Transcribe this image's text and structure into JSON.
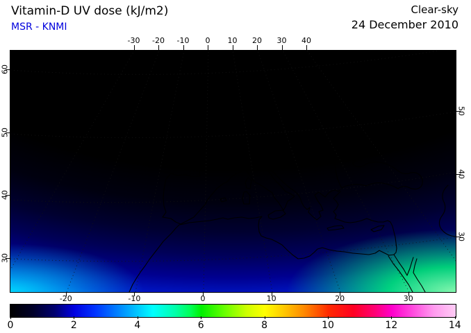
{
  "header": {
    "title": "Vitamin-D UV dose (kJ/m2)",
    "source": "MSR - KNMI",
    "condition": "Clear-sky",
    "date": "24 December 2010"
  },
  "map_axes": {
    "top_lon_ticks": [
      -30,
      -20,
      -10,
      0,
      10,
      20,
      30,
      40
    ],
    "bottom_lon_ticks": [
      -20,
      -10,
      0,
      10,
      20,
      30
    ],
    "left_lat_ticks": [
      60,
      50,
      40,
      30
    ],
    "right_lat_ticks": [
      50,
      40,
      30
    ]
  },
  "colorbar": {
    "ticks": [
      0,
      2,
      4,
      6,
      8,
      10,
      12,
      14
    ],
    "min": 0,
    "max": 14,
    "units": "kJ/m2"
  },
  "colors": {
    "source_text": "#0000dd",
    "frame": "#000000",
    "palette_samples": [
      "#000000",
      "#0000e0",
      "#00c8ff",
      "#00f000",
      "#ffff00",
      "#ff2a00",
      "#ff00cc",
      "#ffccf5"
    ]
  },
  "chart_data": {
    "type": "heatmap",
    "title": "Vitamin-D UV dose (kJ/m2)",
    "source": "MSR - KNMI",
    "sky_condition": "Clear-sky",
    "date": "24 December 2010",
    "projection": "satellite-style view of Europe, Mediterranean and North Africa with black coastlines",
    "lon_ticks_deg_east": [
      -30,
      -20,
      -10,
      0,
      10,
      20,
      30,
      40
    ],
    "lat_ticks_deg_north": [
      30,
      40,
      50,
      60
    ],
    "colorbar": {
      "min": 0,
      "max": 14,
      "ticks": [
        0,
        2,
        4,
        6,
        8,
        10,
        12,
        14
      ],
      "units": "kJ/m2",
      "palette_order": [
        "black",
        "dark blue",
        "blue",
        "cyan",
        "green",
        "yellow",
        "orange",
        "red",
        "magenta",
        "pale pink"
      ]
    },
    "field_by_latitude": [
      {
        "lat_deg_north": 60,
        "uv_dose_kj_m2": 0.0
      },
      {
        "lat_deg_north": 55,
        "uv_dose_kj_m2": 0.1
      },
      {
        "lat_deg_north": 50,
        "uv_dose_kj_m2": 0.3
      },
      {
        "lat_deg_north": 45,
        "uv_dose_kj_m2": 0.7
      },
      {
        "lat_deg_north": 40,
        "uv_dose_kj_m2": 1.3
      },
      {
        "lat_deg_north": 35,
        "uv_dose_kj_m2": 2.2
      },
      {
        "lat_deg_north": 30,
        "uv_dose_kj_m2": 3.2
      },
      {
        "lat_deg_north": 27,
        "uv_dose_kj_m2": 4.5
      }
    ],
    "maximum": {
      "location": "south-east corner of map",
      "uv_dose_kj_m2": 5.5
    },
    "notes": "Near-zero dose (black) north of ~55N at winter solstice; dose increases southward through dark blue, blue and cyan; brightest cyan-green band along the southern edge, strongest green patch in the south-east corner."
  }
}
